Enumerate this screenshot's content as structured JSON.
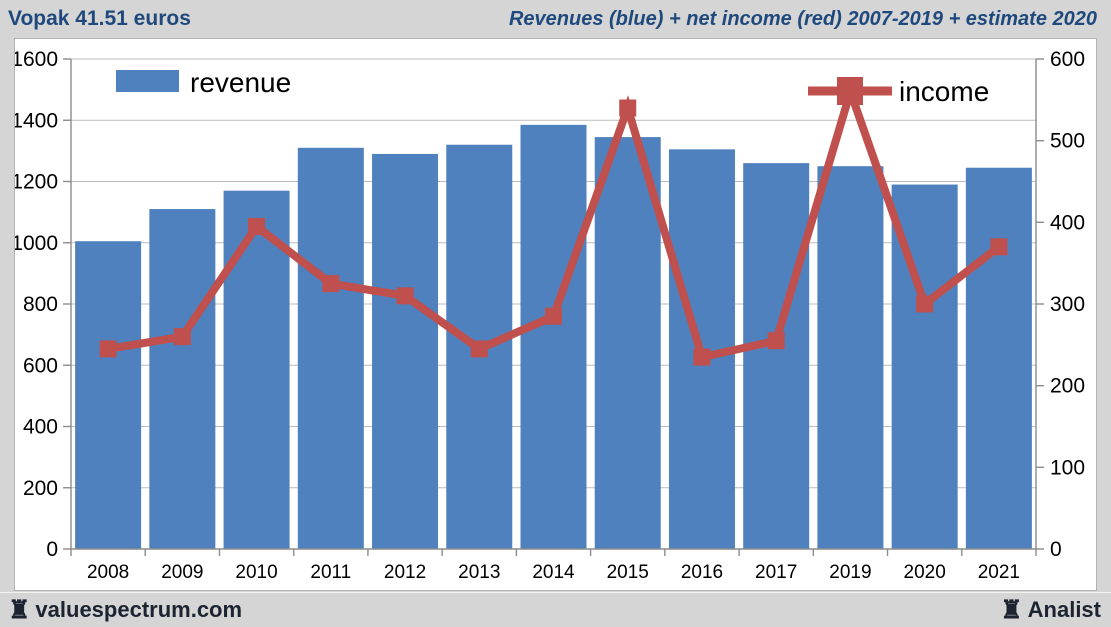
{
  "header": {
    "title_left": "Vopak 41.51 euros",
    "title_right": "Revenues (blue) + net income (red) 2007-2019 + estimate 2020"
  },
  "footer": {
    "brand_left": "valuespectrum.com",
    "brand_right": "Analist",
    "rook_icon": "♜"
  },
  "chart_data": {
    "type": "bar",
    "title": "Revenues (blue) + net income (red) 2007-2019 + estimate 2020",
    "categories": [
      "2008",
      "2009",
      "2010",
      "2011",
      "2012",
      "2013",
      "2014",
      "2015",
      "2016",
      "2017",
      "2019",
      "2020",
      "2021"
    ],
    "series": [
      {
        "name": "revenue",
        "type": "bar",
        "axis": "left",
        "color": "#4E81BD",
        "values": [
          1005,
          1110,
          1170,
          1310,
          1290,
          1320,
          1385,
          1345,
          1305,
          1260,
          1250,
          1190,
          1245
        ]
      },
      {
        "name": "income",
        "type": "line",
        "axis": "right",
        "color": "#C0504D",
        "values": [
          245,
          260,
          395,
          325,
          310,
          245,
          285,
          540,
          235,
          255,
          560,
          300,
          370
        ]
      }
    ],
    "left_axis": {
      "min": 0,
      "max": 1600,
      "step": 200,
      "ticks": [
        "0",
        "200",
        "400",
        "600",
        "800",
        "1000",
        "1200",
        "1400",
        "1600"
      ]
    },
    "right_axis": {
      "min": 0,
      "max": 600,
      "step": 100,
      "ticks": [
        "0",
        "100",
        "200",
        "300",
        "400",
        "500",
        "600"
      ]
    },
    "grid": true,
    "legend_position": "top-inside",
    "colors": {
      "bar_blue": "#4E81BD",
      "line_red": "#C0504D",
      "gridline": "#bcbcbc",
      "axis": "#8c8c8c",
      "label": "#000000"
    }
  }
}
